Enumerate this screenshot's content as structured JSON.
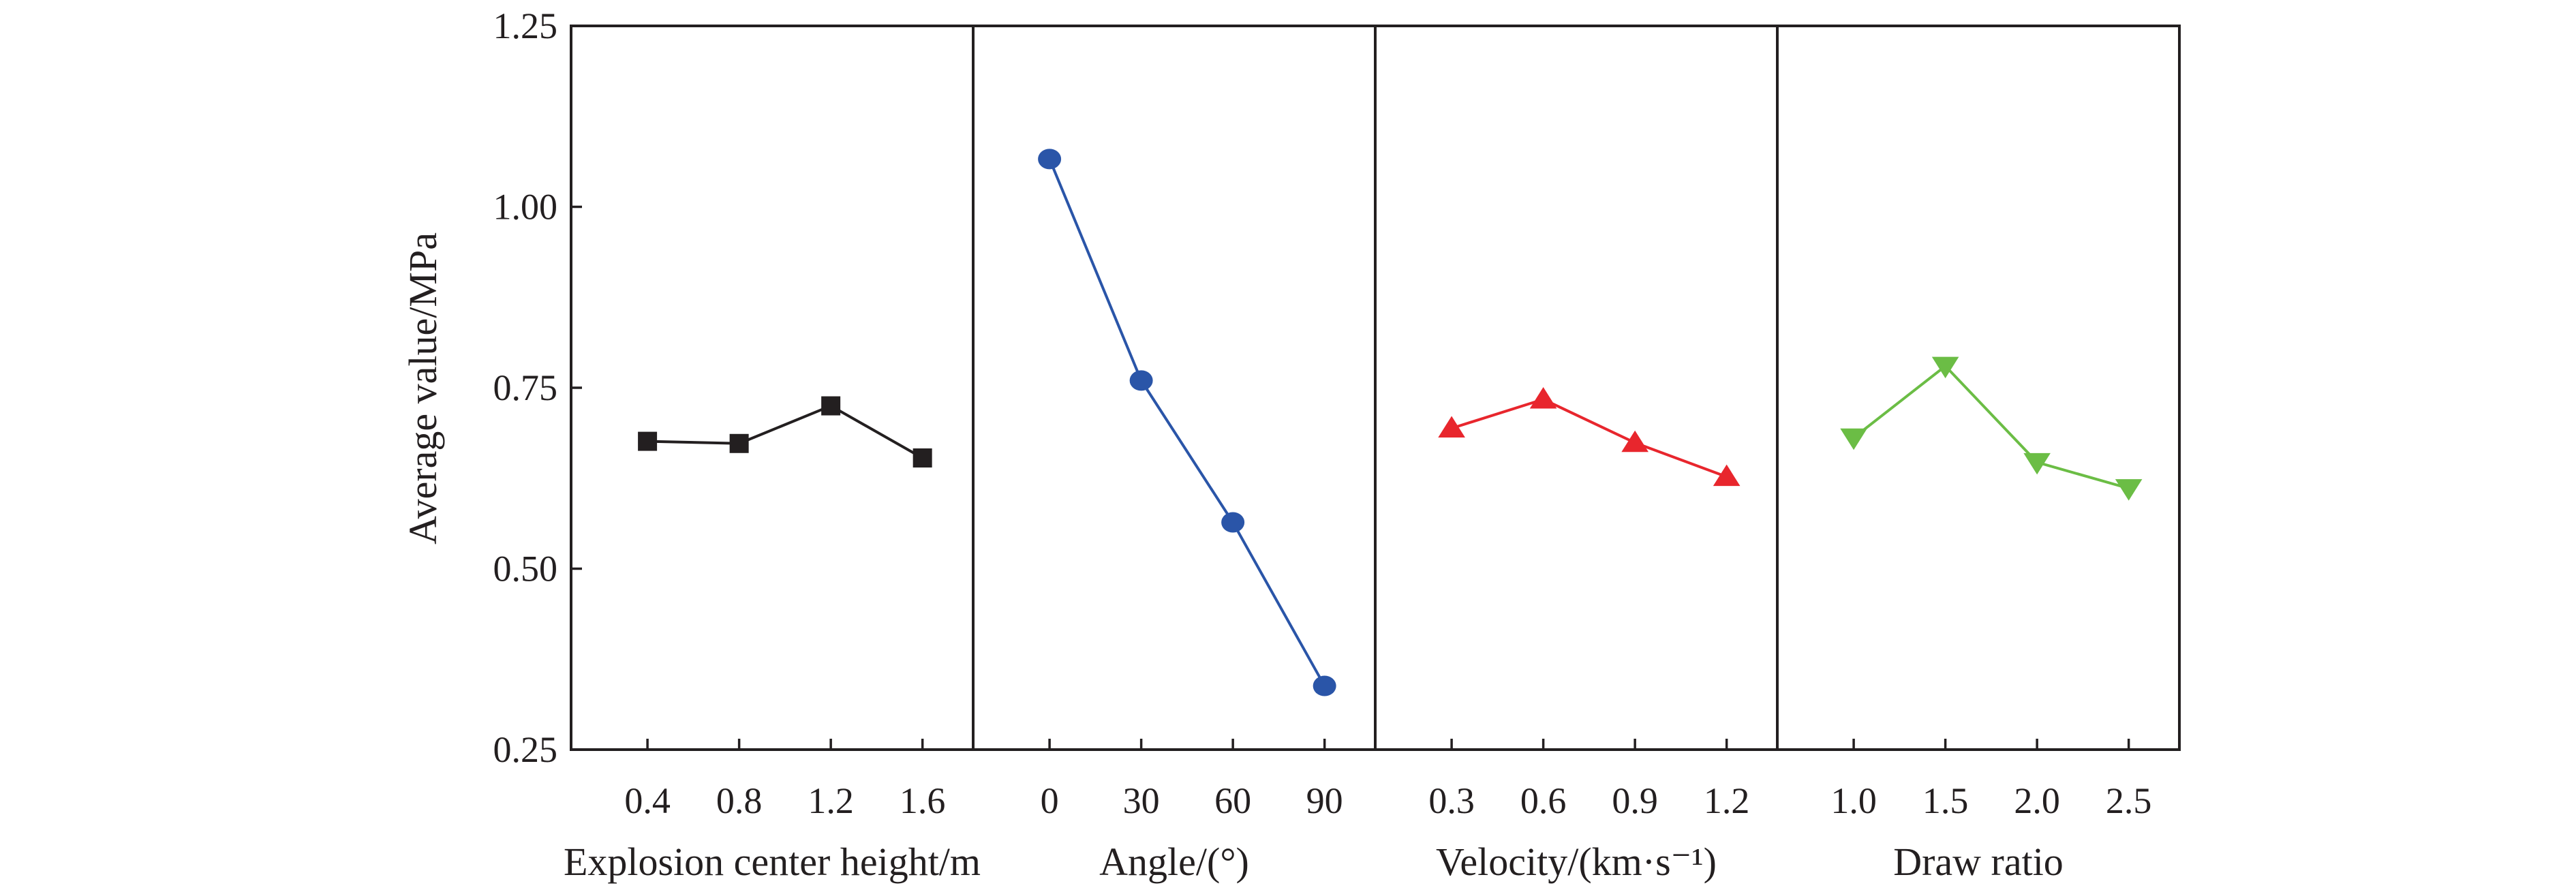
{
  "chart_data": {
    "type": "line",
    "ylabel": "Average value/MPa",
    "ylim": [
      0.25,
      1.25
    ],
    "yticks": [
      "0.25",
      "0.50",
      "0.75",
      "1.00",
      "1.25"
    ],
    "panels": [
      {
        "xlabel": "Explosion center height/m",
        "categories": [
          "0.4",
          "0.8",
          "1.2",
          "1.6"
        ],
        "values": [
          0.676,
          0.673,
          0.725,
          0.653
        ],
        "color": "#231f20",
        "marker": "square"
      },
      {
        "xlabel": "Angle/(°)",
        "categories": [
          "0",
          "30",
          "60",
          "90"
        ],
        "values": [
          1.066,
          0.76,
          0.564,
          0.338
        ],
        "color": "#2a55a8",
        "marker": "circle"
      },
      {
        "xlabel": "Velocity/(km·s⁻¹)",
        "categories": [
          "0.3",
          "0.6",
          "0.9",
          "1.2"
        ],
        "values": [
          0.694,
          0.734,
          0.674,
          0.627
        ],
        "color": "#e8262d",
        "marker": "triangle-up"
      },
      {
        "xlabel": "Draw ratio",
        "categories": [
          "1.0",
          "1.5",
          "2.0",
          "2.5"
        ],
        "values": [
          0.681,
          0.78,
          0.647,
          0.611
        ],
        "color": "#6bbd45",
        "marker": "triangle-down"
      }
    ]
  }
}
